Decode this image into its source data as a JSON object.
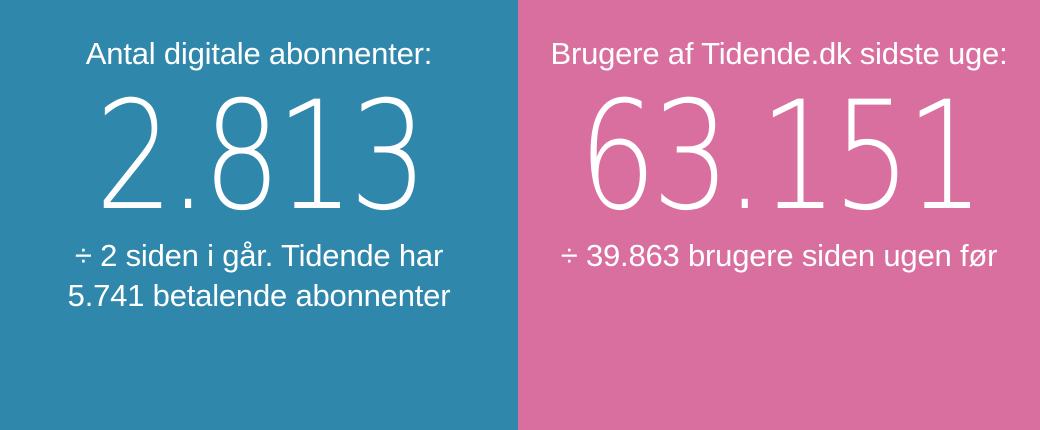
{
  "left": {
    "label": "Antal digitale abonnenter:",
    "value": "2.813",
    "note_line1": "÷ 2 siden i går. Tidende har",
    "note_line2": "5.741 betalende abonnenter",
    "background": "#2f87ab"
  },
  "right": {
    "label": "Brugere af Tidende.dk sidste uge:",
    "value": "63.151",
    "note_line1": "÷ 39.863 brugere siden ugen før",
    "background": "#d86f9f"
  }
}
